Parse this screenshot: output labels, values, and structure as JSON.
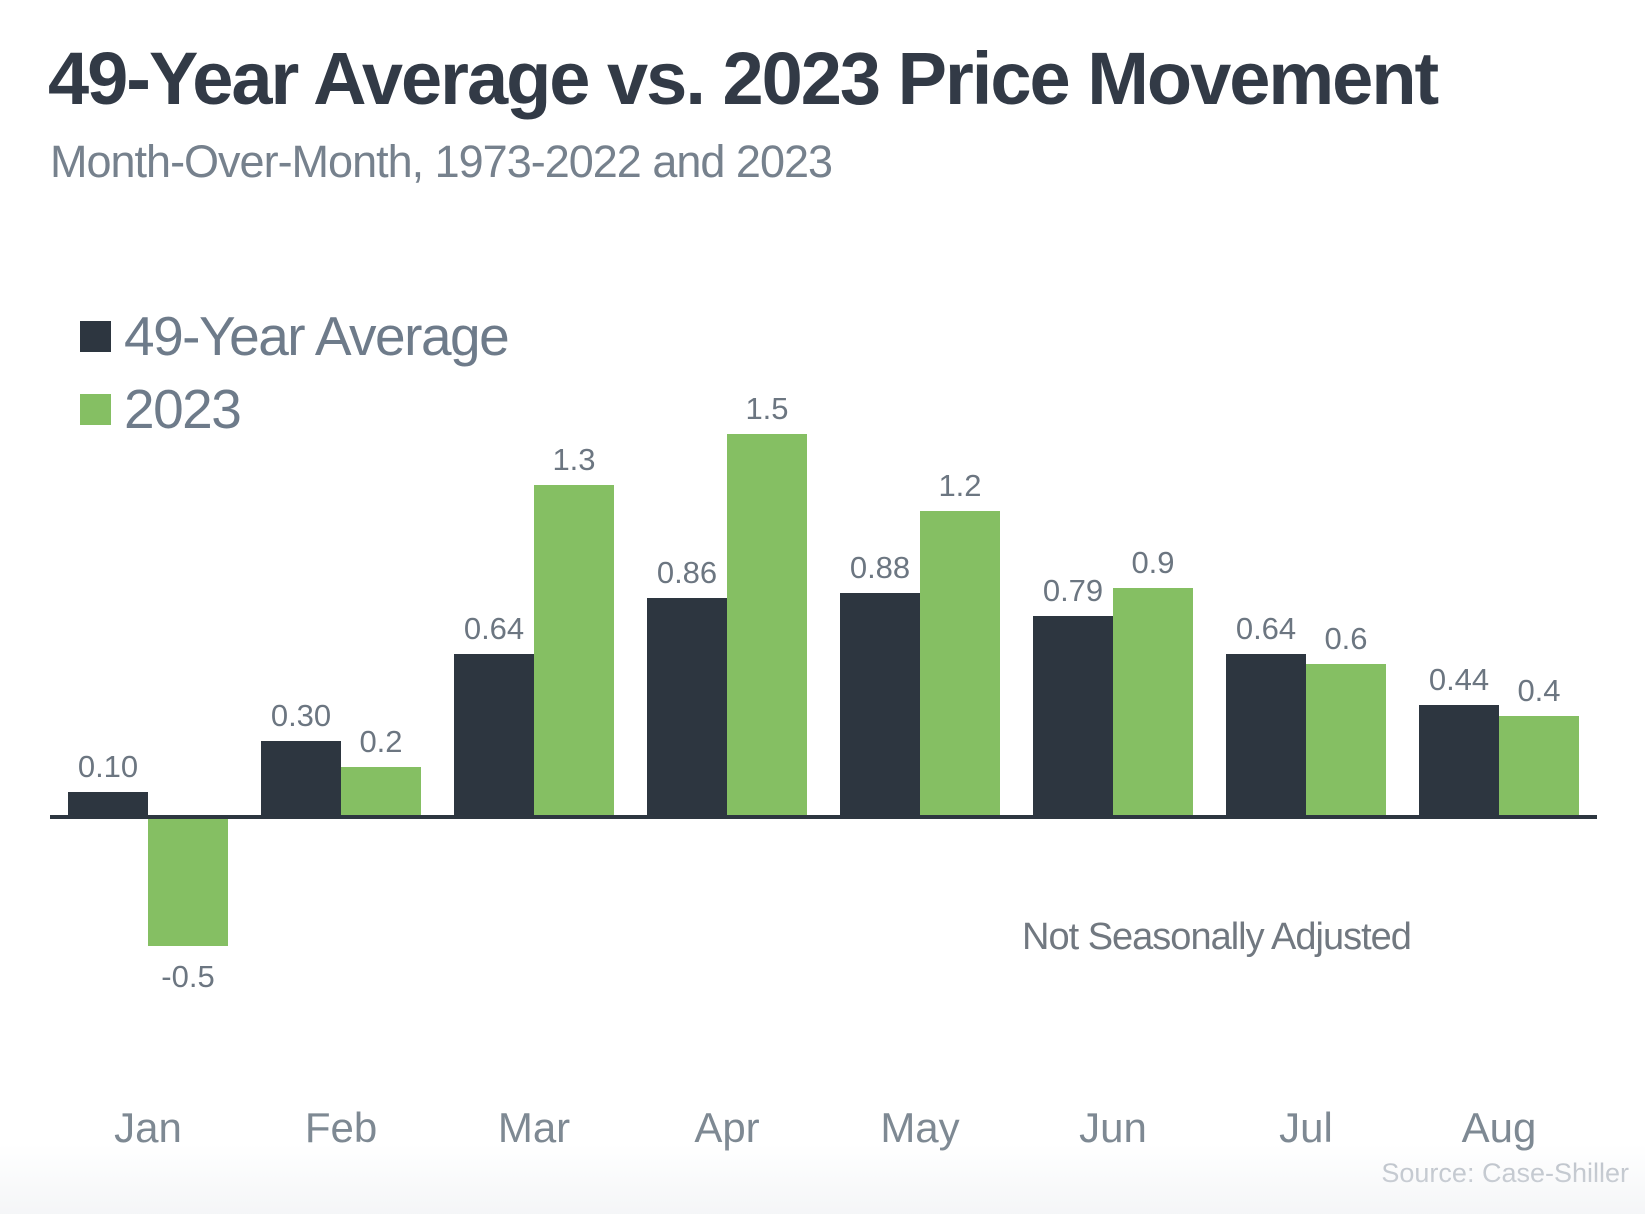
{
  "header": {
    "title": "49-Year Average vs. 2023 Price Movement",
    "subtitle": "Month-Over-Month, 1973-2022 and 2023"
  },
  "legend": [
    {
      "label": "49-Year Average",
      "color": "#2d3640"
    },
    {
      "label": "2023",
      "color": "#85bf63"
    }
  ],
  "annotations": {
    "note": "Not Seasonally Adjusted",
    "source": "Source: Case-Shiller"
  },
  "colors": {
    "average_series": "#2d3640",
    "year_2023_series": "#85bf63",
    "axis": "#2d3640"
  },
  "chart_data": {
    "type": "bar",
    "title": "49-Year Average vs. 2023 Price Movement",
    "subtitle": "Month-Over-Month, 1973-2022 and 2023",
    "categories": [
      "Jan",
      "Feb",
      "Mar",
      "Apr",
      "May",
      "Jun",
      "Jul",
      "Aug"
    ],
    "series": [
      {
        "name": "49-Year Average",
        "key": "avg",
        "color": "#2d3640",
        "values": [
          0.1,
          0.3,
          0.64,
          0.86,
          0.88,
          0.79,
          0.64,
          0.44
        ],
        "labels": [
          "0.10",
          "0.30",
          "0.64",
          "0.86",
          "0.88",
          "0.79",
          "0.64",
          "0.44"
        ]
      },
      {
        "name": "2023",
        "key": "2023",
        "color": "#85bf63",
        "values": [
          -0.5,
          0.2,
          1.3,
          1.5,
          1.2,
          0.9,
          0.6,
          0.4
        ],
        "labels": [
          "-0.5",
          "0.2",
          "1.3",
          "1.5",
          "1.2",
          "0.9",
          "0.6",
          "0.4"
        ]
      }
    ],
    "xlabel": "",
    "ylabel": "",
    "ylim": [
      -0.75,
      1.75
    ],
    "grid": false,
    "legend_position": "top-left",
    "value_labels_shown": true,
    "y_axis_shown": false
  }
}
